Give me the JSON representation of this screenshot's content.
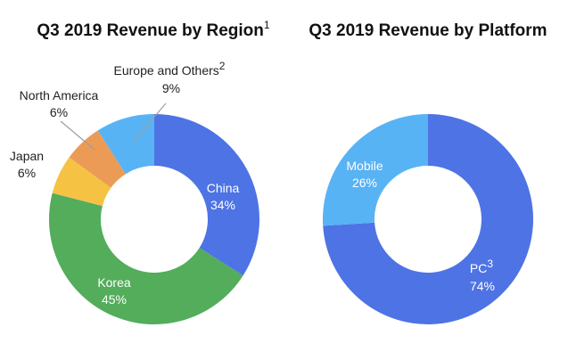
{
  "chart_data": [
    {
      "type": "pie",
      "title": "Q3 2019 Revenue by Region",
      "title_footnote": "1",
      "slices": [
        {
          "label": "China",
          "value": 34,
          "value_label": "34%",
          "color": "#4e73e5"
        },
        {
          "label": "Korea",
          "value": 45,
          "value_label": "45%",
          "color": "#53ad5b"
        },
        {
          "label": "Japan",
          "value": 6,
          "value_label": "6%",
          "color": "#f6c244"
        },
        {
          "label": "North America",
          "value": 6,
          "value_label": "6%",
          "color": "#ec9b57"
        },
        {
          "label": "Europe and Others",
          "label_footnote": "2",
          "value": 9,
          "value_label": "9%",
          "color": "#58b3f5"
        }
      ]
    },
    {
      "type": "pie",
      "title": "Q3 2019 Revenue by Platform",
      "slices": [
        {
          "label": "PC",
          "label_footnote": "3",
          "value": 74,
          "value_label": "74%",
          "color": "#4e73e5"
        },
        {
          "label": "Mobile",
          "value": 26,
          "value_label": "26%",
          "color": "#58b3f5"
        }
      ]
    }
  ]
}
